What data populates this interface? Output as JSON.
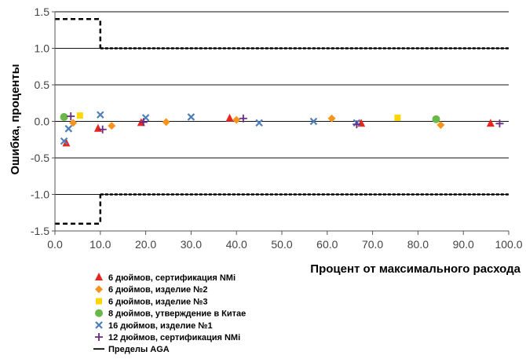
{
  "chart_data": {
    "type": "scatter",
    "xlabel": "Процент от максимального расхода",
    "ylabel": "Ошибка, проценты",
    "xlim": [
      0,
      100
    ],
    "ylim": [
      -1.5,
      1.5
    ],
    "x_ticks": [
      "0.0",
      "10.0",
      "20.0",
      "30.0",
      "40.0",
      "50.0",
      "60.0",
      "70.0",
      "80.0",
      "90.0",
      "100.0"
    ],
    "y_ticks": [
      "1.5",
      "1.0",
      "0.5",
      "0.0",
      "-0.5",
      "-1.0",
      "-1.5"
    ],
    "y_tick_values": [
      1.5,
      1.0,
      0.5,
      0.0,
      -0.5,
      -1.0,
      -1.5
    ],
    "grid": "horizontal",
    "legend_position": "bottom-left",
    "series": [
      {
        "name": "6 дюймов, сертификация NMi",
        "marker": "triangle",
        "color": "#e8251e",
        "points": [
          [
            2.5,
            -0.3
          ],
          [
            9.5,
            -0.1
          ],
          [
            19.0,
            -0.02
          ],
          [
            38.5,
            0.04
          ],
          [
            67.5,
            -0.03
          ],
          [
            96.0,
            -0.03
          ]
        ]
      },
      {
        "name": "6 дюймов, изделие №2",
        "marker": "diamond",
        "color": "#f7941d",
        "points": [
          [
            4.0,
            -0.02
          ],
          [
            12.5,
            -0.06
          ],
          [
            24.5,
            -0.01
          ],
          [
            40.0,
            0.02
          ],
          [
            61.0,
            0.04
          ],
          [
            85.0,
            -0.05
          ]
        ]
      },
      {
        "name": "6 дюймов, изделие №3",
        "marker": "square",
        "color": "#ffd700",
        "points": [
          [
            5.5,
            0.08
          ],
          [
            75.5,
            0.05
          ]
        ]
      },
      {
        "name": "8 дюймов, утверждение в Китае",
        "marker": "circle",
        "color": "#6ab84a",
        "points": [
          [
            2.0,
            0.06
          ],
          [
            84.0,
            0.03
          ]
        ]
      },
      {
        "name": "16 дюймов, изделие №1",
        "marker": "x",
        "color": "#4f7fb8",
        "points": [
          [
            2.0,
            -0.27
          ],
          [
            3.0,
            -0.1
          ],
          [
            10.0,
            0.09
          ],
          [
            20.0,
            0.05
          ],
          [
            30.0,
            0.06
          ],
          [
            45.0,
            -0.02
          ],
          [
            57.0,
            0.0
          ],
          [
            66.5,
            -0.02
          ]
        ]
      },
      {
        "name": "12 дюймов, сертификация NMi",
        "marker": "plus",
        "color": "#6b2a84",
        "points": [
          [
            3.5,
            0.07
          ],
          [
            10.5,
            -0.11
          ],
          [
            19.5,
            -0.01
          ],
          [
            41.5,
            0.04
          ],
          [
            66.5,
            -0.04
          ],
          [
            98.0,
            -0.03
          ]
        ]
      }
    ],
    "limits": {
      "name": "Пределы AGA",
      "color": "#000000",
      "upper": [
        [
          0,
          1.4
        ],
        [
          10,
          1.4
        ],
        [
          10,
          1.0
        ],
        [
          100,
          1.0
        ]
      ],
      "lower": [
        [
          0,
          -1.4
        ],
        [
          10,
          -1.4
        ],
        [
          10,
          -1.0
        ],
        [
          100,
          -1.0
        ]
      ]
    }
  }
}
